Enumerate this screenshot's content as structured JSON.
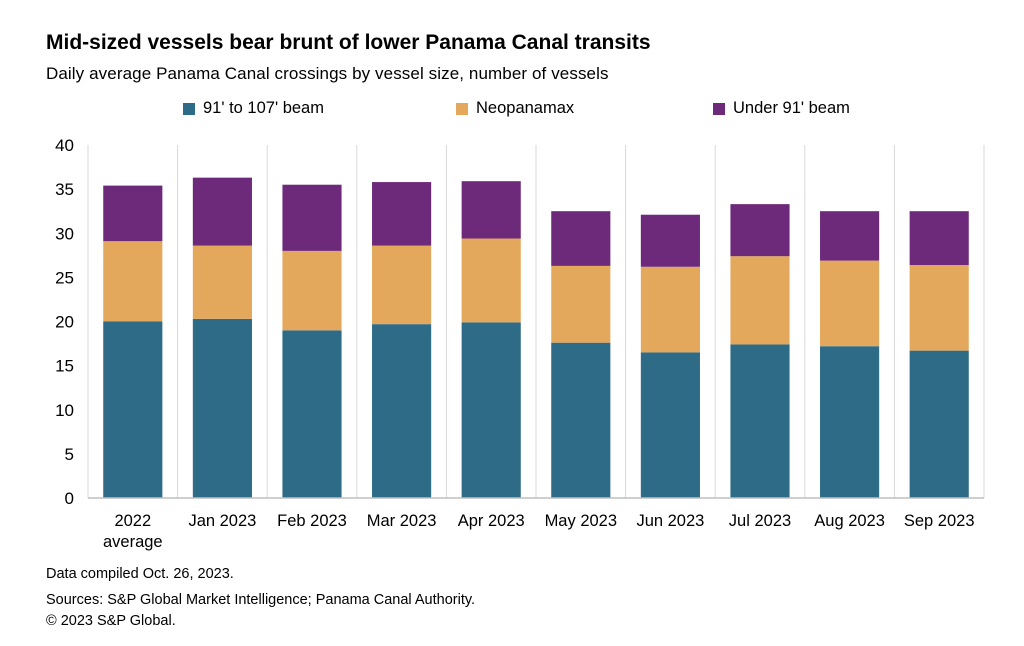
{
  "header": {
    "title": "Mid-sized vessels bear brunt of lower Panama Canal transits",
    "subtitle": "Daily average  Panama  Canal crossings by vessel size, number of vessels"
  },
  "colors": {
    "series_1": "#2e6b87",
    "series_2": "#e4a85c",
    "series_3": "#6e2a7a",
    "grid": "#d9d9d9",
    "axis": "#bfbfbf"
  },
  "chart_data": {
    "type": "bar",
    "stacked": true,
    "categories": [
      [
        "2022",
        "average"
      ],
      [
        "Jan 2023"
      ],
      [
        "Feb 2023"
      ],
      [
        "Mar 2023"
      ],
      [
        "Apr 2023"
      ],
      [
        "May 2023"
      ],
      [
        "Jun 2023"
      ],
      [
        "Jul 2023"
      ],
      [
        "Aug 2023"
      ],
      [
        "Sep 2023"
      ]
    ],
    "series": [
      {
        "name": "91' to 107' beam",
        "values": [
          20.0,
          20.3,
          19.0,
          19.7,
          19.9,
          17.6,
          16.5,
          17.4,
          17.2,
          16.7
        ]
      },
      {
        "name": "Neopanamax",
        "values": [
          9.1,
          8.3,
          9.0,
          8.9,
          9.5,
          8.7,
          9.7,
          10.0,
          9.7,
          9.7
        ]
      },
      {
        "name": "Under 91' beam",
        "values": [
          6.3,
          7.7,
          7.5,
          7.2,
          6.5,
          6.2,
          5.9,
          5.9,
          5.6,
          6.1
        ]
      }
    ],
    "ylim": [
      0,
      40
    ],
    "yticks": [
      0,
      5,
      10,
      15,
      20,
      25,
      30,
      35,
      40
    ],
    "grid": "vertical separators",
    "legend_position": "top"
  },
  "footer": {
    "line1": "Data compiled Oct. 26, 2023.",
    "line2": "Sources: S&P Global Market Intelligence; Panama Canal Authority.",
    "line3": "© 2023 S&P Global."
  }
}
